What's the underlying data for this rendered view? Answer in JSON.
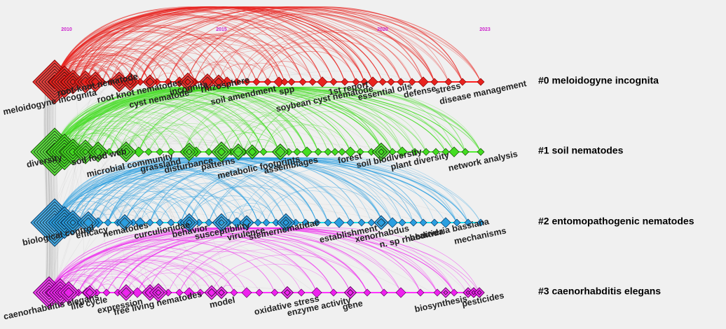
{
  "years": [
    {
      "label": "2010",
      "value": 2010
    },
    {
      "label": "2015",
      "value": 2015
    },
    {
      "label": "2020",
      "value": 2020
    },
    {
      "label": "2023",
      "value": 2023
    }
  ],
  "clusters": [
    {
      "label": "#0 meloidogyne incognita",
      "color": "#e8231f",
      "line": "#ff2020",
      "dark": "#8a0000",
      "keywords": [
        "meloidogyne incognita",
        "root-knot nematode",
        "root knot nematodes",
        "cyst nematode",
        "incognita",
        "rhizosphere",
        "soil amendment",
        "spp",
        "soybean cyst nematode",
        "1st report",
        "essential oils",
        "defense",
        "stress",
        "disease management"
      ]
    },
    {
      "label": "#1 soil nematodes",
      "color": "#44dd22",
      "line": "#55ee33",
      "dark": "#125000",
      "keywords": [
        "diversity",
        "soil food web",
        "microbial community",
        "grassland",
        "disturbance",
        "patterns",
        "metabolic footprints",
        "assemblages",
        "forest",
        "soil biodiversity",
        "plant diversity",
        "network analysis"
      ]
    },
    {
      "label": "#2 entomopathogenic nematodes",
      "color": "#2a9fe0",
      "line": "#22ddee",
      "dark": "#063a66",
      "keywords": [
        "biological control",
        "efficacy",
        "nematodes",
        "curculionidae",
        "behavior",
        "susceptibility",
        "virulence",
        "steinernematidae",
        "establishment",
        "xenorhabdus",
        "n. sp rhabditida",
        "beauveria bassiana",
        "mechanisms"
      ]
    },
    {
      "label": "#3 caenorhabditis elegans",
      "color": "#ee22ee",
      "line": "#ff33ff",
      "dark": "#660066",
      "keywords": [
        "caenorhabditis elegans",
        "life cycle",
        "expression",
        "free living nematodes",
        "model",
        "oxidative stress",
        "enzyme activity",
        "gene",
        "biosynthesis",
        "pesticides"
      ]
    }
  ]
}
